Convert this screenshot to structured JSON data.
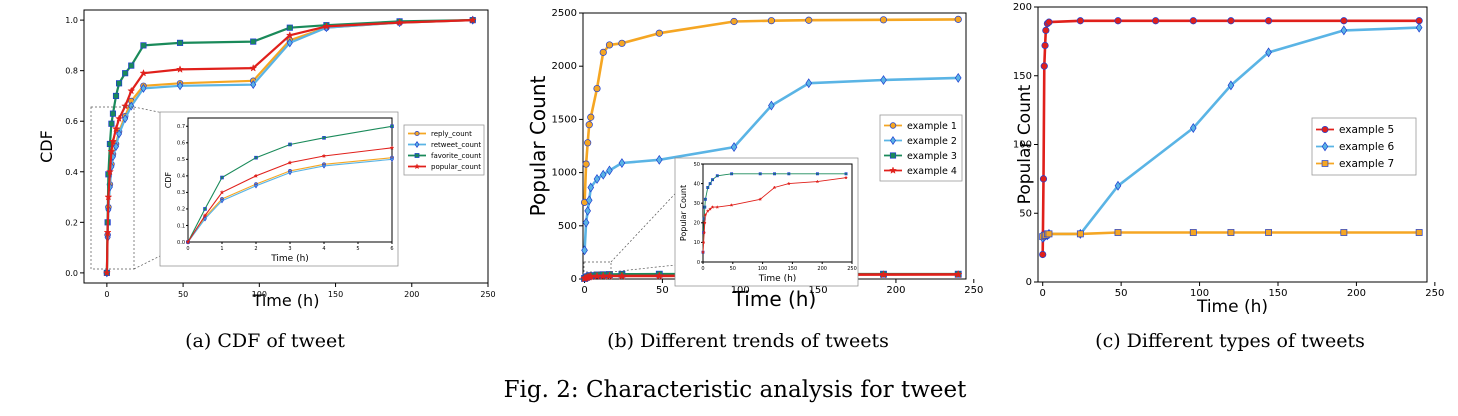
{
  "figure_caption": "Fig. 2: Characteristic analysis for tweet",
  "chart_data": [
    {
      "id": "a",
      "type": "line",
      "caption": "(a) CDF of tweet",
      "xlabel": "Time (h)",
      "ylabel": "CDF",
      "xlim": [
        -15,
        250
      ],
      "ylim": [
        -0.04,
        1.04
      ],
      "xticks": [
        "0",
        "50",
        "100",
        "150",
        "200",
        "250"
      ],
      "yticks": [
        "0.0",
        "0.2",
        "0.4",
        "0.6",
        "0.8",
        "1.0"
      ],
      "grid": false,
      "legend": "center-right",
      "series": [
        {
          "name": "reply_count",
          "color": "#f5a623",
          "marker": "circle",
          "x": [
            0,
            0.5,
            1,
            2,
            3,
            4,
            6,
            8,
            12,
            16,
            24,
            48,
            96,
            120,
            144,
            192,
            240
          ],
          "y": [
            0,
            0.15,
            0.26,
            0.35,
            0.43,
            0.47,
            0.51,
            0.56,
            0.62,
            0.68,
            0.74,
            0.75,
            0.76,
            0.92,
            0.97,
            0.99,
            1.0
          ]
        },
        {
          "name": "retweet_count",
          "color": "#5ab4e5",
          "marker": "diamond",
          "x": [
            0,
            0.5,
            1,
            2,
            3,
            4,
            6,
            8,
            12,
            16,
            24,
            48,
            96,
            120,
            144,
            192,
            240
          ],
          "y": [
            0,
            0.14,
            0.25,
            0.34,
            0.42,
            0.46,
            0.5,
            0.55,
            0.61,
            0.66,
            0.73,
            0.74,
            0.745,
            0.91,
            0.97,
            0.99,
            1.0
          ]
        },
        {
          "name": "favorite_count",
          "color": "#1a8a5a",
          "marker": "square",
          "x": [
            0,
            0.5,
            1,
            2,
            3,
            4,
            6,
            8,
            12,
            16,
            24,
            48,
            96,
            120,
            144,
            192,
            240
          ],
          "y": [
            0,
            0.2,
            0.39,
            0.51,
            0.59,
            0.63,
            0.7,
            0.75,
            0.79,
            0.82,
            0.9,
            0.91,
            0.915,
            0.97,
            0.98,
            0.995,
            1.0
          ]
        },
        {
          "name": "popular_count",
          "color": "#e0201b",
          "marker": "star",
          "x": [
            0,
            0.5,
            1,
            2,
            3,
            4,
            6,
            8,
            12,
            16,
            24,
            48,
            96,
            120,
            144,
            192,
            240
          ],
          "y": [
            0,
            0.16,
            0.3,
            0.4,
            0.48,
            0.52,
            0.57,
            0.61,
            0.66,
            0.72,
            0.79,
            0.805,
            0.81,
            0.94,
            0.975,
            0.99,
            1.0
          ]
        }
      ],
      "inset": {
        "xlim": [
          0,
          6
        ],
        "ylim": [
          0,
          0.75
        ],
        "xticks": [
          "0",
          "1",
          "2",
          "3",
          "4",
          "5",
          "6"
        ],
        "yticks": [
          "0.0",
          "0.1",
          "0.2",
          "0.3",
          "0.4",
          "0.5",
          "0.6",
          "0.7"
        ],
        "xlabel": "Time (h)",
        "ylabel": "CDF"
      }
    },
    {
      "id": "b",
      "type": "line",
      "caption": "(b) Different trends of tweets",
      "xlabel": "Time (h)",
      "ylabel": "Popular Count",
      "xlim": [
        -1,
        245
      ],
      "ylim": [
        0,
        2500
      ],
      "xticks": [
        "0",
        "50",
        "100",
        "150",
        "200",
        "250"
      ],
      "yticks": [
        "0",
        "500",
        "1000",
        "1500",
        "2000",
        "2500"
      ],
      "grid": false,
      "legend": "center-right",
      "series": [
        {
          "name": "example 1",
          "color": "#f5a623",
          "marker": "circle",
          "x": [
            0,
            1,
            2,
            3,
            4,
            8,
            12,
            16,
            24,
            48,
            96,
            120,
            144,
            192,
            240
          ],
          "y": [
            720,
            1080,
            1280,
            1450,
            1520,
            1790,
            2130,
            2200,
            2215,
            2310,
            2420,
            2428,
            2432,
            2436,
            2440
          ]
        },
        {
          "name": "example 2",
          "color": "#5ab4e5",
          "marker": "diamond",
          "x": [
            0,
            1,
            2,
            3,
            4,
            8,
            12,
            16,
            24,
            48,
            96,
            120,
            144,
            192,
            240
          ],
          "y": [
            270,
            530,
            640,
            740,
            860,
            940,
            980,
            1020,
            1090,
            1120,
            1240,
            1630,
            1840,
            1870,
            1890
          ]
        },
        {
          "name": "example 3",
          "color": "#1a8a5a",
          "marker": "square",
          "x": [
            0,
            1,
            2,
            3,
            4,
            8,
            12,
            16,
            24,
            48,
            96,
            120,
            144,
            192,
            240
          ],
          "y": [
            5,
            15,
            22,
            28,
            32,
            38,
            40,
            42,
            44,
            45,
            45,
            45,
            45,
            45,
            45
          ]
        },
        {
          "name": "example 4",
          "color": "#e0201b",
          "marker": "star",
          "x": [
            0,
            1,
            2,
            3,
            4,
            8,
            12,
            16,
            24,
            48,
            96,
            120,
            144,
            192,
            240
          ],
          "y": [
            5,
            10,
            15,
            20,
            24,
            26,
            27,
            28,
            28,
            29,
            32,
            38,
            40,
            41,
            43
          ]
        }
      ],
      "inset": {
        "xlim": [
          0,
          250
        ],
        "ylim": [
          0,
          50
        ],
        "xticks": [
          "0",
          "50",
          "100",
          "150",
          "200",
          "250"
        ],
        "yticks": [
          "0",
          "10",
          "20",
          "30",
          "40",
          "50"
        ],
        "xlabel": "Time (h)",
        "ylabel": "Popular Count"
      }
    },
    {
      "id": "c",
      "type": "line",
      "caption": "(c) Different types of tweets",
      "xlabel": "Time (h)",
      "ylabel": "Popular Count",
      "xlim": [
        -3,
        245
      ],
      "ylim": [
        0,
        200
      ],
      "xticks": [
        "0",
        "50",
        "100",
        "150",
        "200",
        "250"
      ],
      "yticks": [
        "0",
        "50",
        "100",
        "150",
        "200"
      ],
      "grid": false,
      "legend": "center-right",
      "series": [
        {
          "name": "example 5",
          "color": "#e0201b",
          "marker": "circle",
          "x": [
            0,
            0.5,
            1,
            1.5,
            2,
            3,
            4,
            24,
            48,
            72,
            96,
            120,
            144,
            192,
            240
          ],
          "y": [
            20,
            75,
            157,
            172,
            183,
            188,
            189,
            190,
            190,
            190,
            190,
            190,
            190,
            190,
            190
          ]
        },
        {
          "name": "example 6",
          "color": "#5ab4e5",
          "marker": "diamond",
          "x": [
            0,
            1,
            2,
            3,
            4,
            24,
            48,
            96,
            120,
            144,
            192,
            240
          ],
          "y": [
            32,
            33,
            34,
            34,
            35,
            35,
            70,
            112,
            143,
            167,
            183,
            185
          ]
        },
        {
          "name": "example 7",
          "color": "#f5a623",
          "marker": "square",
          "x": [
            0,
            1,
            2,
            3,
            4,
            24,
            48,
            96,
            120,
            144,
            192,
            240
          ],
          "y": [
            33,
            34,
            34,
            35,
            35,
            35,
            36,
            36,
            36,
            36,
            36,
            36
          ]
        }
      ]
    }
  ]
}
